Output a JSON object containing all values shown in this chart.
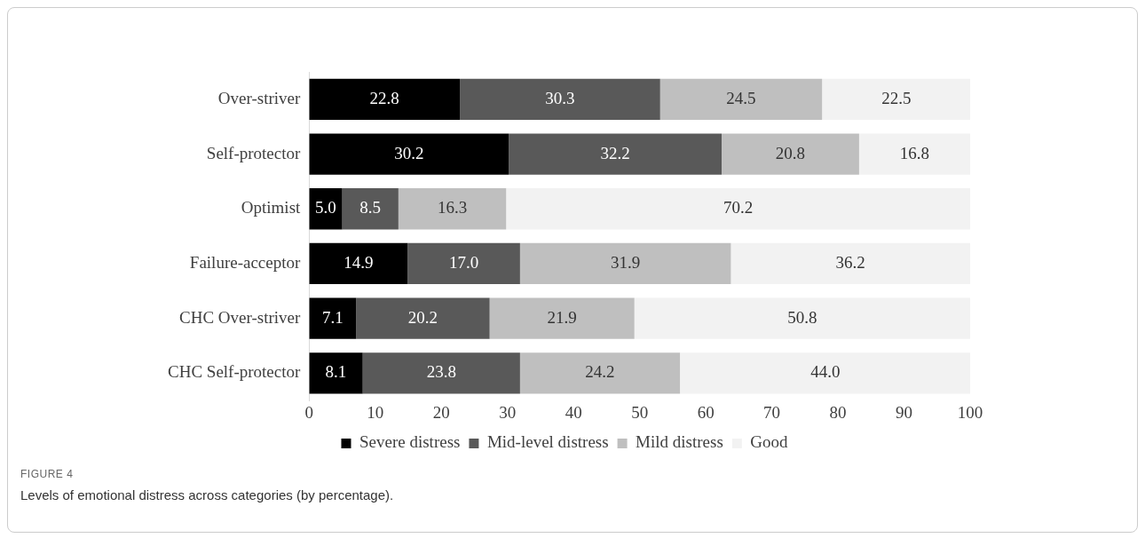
{
  "chart_data": {
    "type": "bar",
    "orientation": "horizontal",
    "stacked": true,
    "legend": "bottom",
    "grid": false,
    "categories": [
      "Over-striver",
      "Self-protector",
      "Optimist",
      "Failure-acceptor",
      "CHC Over-striver",
      "CHC Self-protector"
    ],
    "series": [
      {
        "name": "Severe distress",
        "color": "#000000",
        "values": [
          22.8,
          30.2,
          5.0,
          14.9,
          7.1,
          8.1
        ],
        "value_labels": [
          "22.8",
          "30.2",
          "5.0",
          "14.9",
          "7.1",
          "8.1"
        ]
      },
      {
        "name": "Mid-level distress",
        "color": "#595959",
        "values": [
          30.3,
          32.2,
          8.5,
          17.0,
          20.2,
          23.8
        ],
        "value_labels": [
          "30.3",
          "32.2",
          "8.5",
          "17.0",
          "20.2",
          "23.8"
        ]
      },
      {
        "name": "Mild distress",
        "color": "#bfbfbf",
        "values": [
          24.5,
          20.8,
          16.3,
          31.9,
          21.9,
          24.2
        ],
        "value_labels": [
          "24.5",
          "20.8",
          "16.3",
          "31.9",
          "21.9",
          "24.2"
        ]
      },
      {
        "name": "Good",
        "color": "#f2f2f2",
        "values": [
          22.5,
          16.8,
          70.2,
          36.2,
          50.8,
          44.0
        ],
        "value_labels": [
          "22.5",
          "16.8",
          "70.2",
          "36.2",
          "50.8",
          "44.0"
        ]
      }
    ],
    "xlim": [
      0,
      100
    ],
    "xticks": [
      0,
      10,
      20,
      30,
      40,
      50,
      60,
      70,
      80,
      90,
      100
    ],
    "annotations": [
      "FIGURE 4",
      "Levels of emotional distress across categories (by percentage)."
    ]
  }
}
